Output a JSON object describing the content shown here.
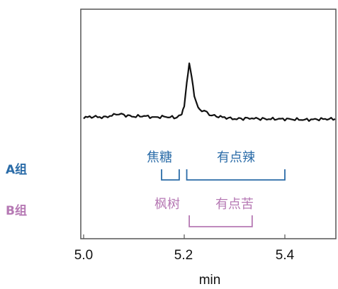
{
  "chart_data": {
    "type": "line",
    "xlabel": "min",
    "xlim": [
      5.0,
      5.5
    ],
    "x_ticks": [
      "5.0",
      "5.2",
      "5.4"
    ],
    "series": [
      {
        "x": [
          5.0,
          5.02,
          5.04,
          5.06,
          5.07,
          5.08,
          5.1,
          5.12,
          5.14,
          5.16,
          5.18,
          5.19,
          5.195,
          5.2,
          5.205,
          5.21,
          5.215,
          5.22,
          5.225,
          5.23,
          5.24,
          5.25,
          5.26,
          5.28,
          5.3,
          5.33,
          5.36,
          5.4,
          5.44,
          5.48,
          5.5
        ],
        "y": [
          0.02,
          0.03,
          0.02,
          0.05,
          0.07,
          0.05,
          0.03,
          0.04,
          0.02,
          0.03,
          0.02,
          0.03,
          0.06,
          0.18,
          0.46,
          0.7,
          0.55,
          0.3,
          0.18,
          0.13,
          0.1,
          0.06,
          0.04,
          0.02,
          0.0,
          0.01,
          0.0,
          0.0,
          -0.01,
          0.0,
          0.0
        ]
      }
    ],
    "groups": [
      {
        "name": "A组",
        "color": "#2b6ca8",
        "brackets": [
          {
            "label": "焦糖",
            "x_start": 5.155,
            "x_end": 5.19
          },
          {
            "label": "有点辣",
            "x_start": 5.205,
            "x_end": 5.4
          }
        ]
      },
      {
        "name": "B组",
        "color": "#b679b4",
        "brackets": [
          {
            "label": "枫树",
            "x_start": null,
            "x_end": null
          },
          {
            "label": "有点苦",
            "x_start": 5.21,
            "x_end": 5.335
          }
        ]
      }
    ]
  }
}
